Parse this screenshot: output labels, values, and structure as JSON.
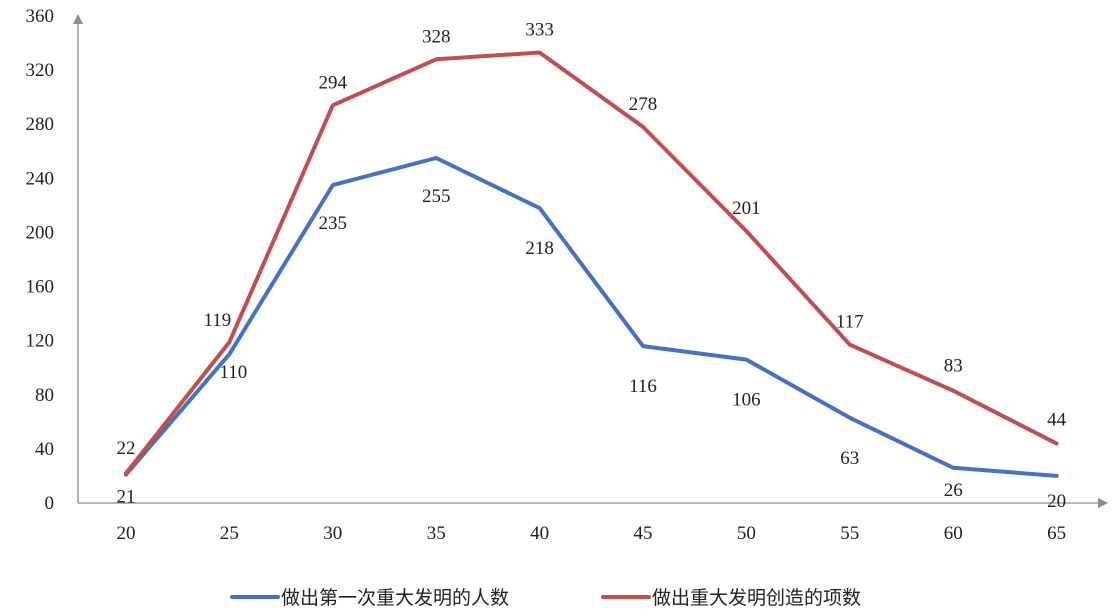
{
  "chart_data": {
    "type": "line",
    "title": "",
    "xlabel": "",
    "ylabel": "",
    "x": [
      20,
      25,
      30,
      35,
      40,
      45,
      50,
      55,
      60,
      65
    ],
    "x_tick_labels": [
      "20",
      "25",
      "30",
      "35",
      "40",
      "45",
      "50",
      "55",
      "60",
      "65"
    ],
    "y_tick_labels": [
      "0",
      "40",
      "80",
      "120",
      "160",
      "200",
      "240",
      "280",
      "320",
      "360"
    ],
    "ylim": [
      0,
      360
    ],
    "grid": false,
    "legend_position": "bottom",
    "series": [
      {
        "name": "做出第一次重大发明的人数",
        "color": "#4472c4",
        "values": [
          21,
          110,
          235,
          255,
          218,
          116,
          106,
          63,
          26,
          20
        ],
        "labels": [
          "21",
          "110",
          "235",
          "255",
          "218",
          "116",
          "106",
          "63",
          "26",
          "20"
        ]
      },
      {
        "name": "做出重大发明创造的项数",
        "color": "#c0504d",
        "values": [
          22,
          119,
          294,
          328,
          333,
          278,
          201,
          117,
          83,
          44
        ],
        "labels": [
          "22",
          "119",
          "294",
          "328",
          "333",
          "278",
          "201",
          "117",
          "83",
          "44"
        ]
      }
    ]
  }
}
